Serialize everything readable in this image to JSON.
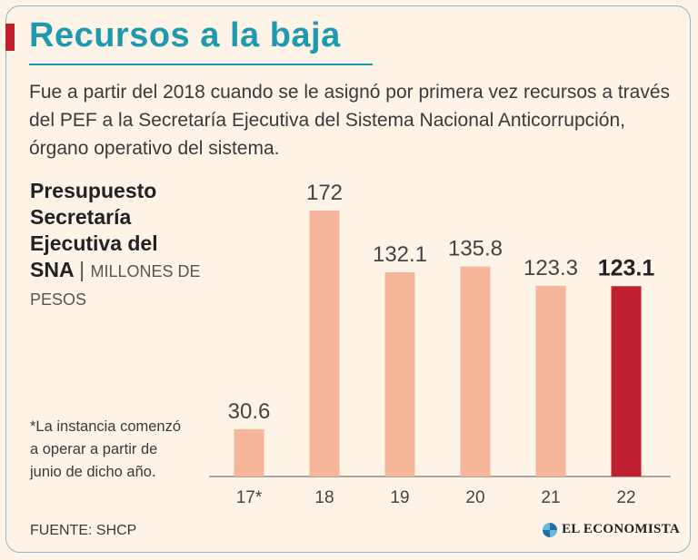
{
  "title": "Recursos a la baja",
  "intro": "Fue a partir del 2018 cuando se le asignó por primera vez recursos a través del PEF a la Secretaría Ejecutiva del Sistema Nacional Anticorrupción, órgano operativo del sistema.",
  "chart_heading": {
    "title": "Presupuesto Secretaría Ejecutiva del SNA",
    "separator": "|",
    "unit": "MILLONES DE PESOS"
  },
  "footnote": "*La instancia comenzó a operar a partir de junio de dicho año.",
  "source": "FUENTE: SHCP",
  "logo_text": "EL ECONOMISTA",
  "colors": {
    "accent": "#c0202c",
    "title": "#1d9ab0",
    "bar": "#f6b69a",
    "bar_highlight": "#bf1f2e"
  },
  "chart_data": {
    "type": "bar",
    "title": "Presupuesto Secretaría Ejecutiva del SNA",
    "ylabel": "MILLONES DE PESOS",
    "xlabel": "",
    "categories": [
      "17*",
      "18",
      "19",
      "20",
      "21",
      "22"
    ],
    "values": [
      30.6,
      172,
      132.1,
      135.8,
      123.3,
      123.1
    ],
    "labels": [
      "30.6",
      "172",
      "132.1",
      "135.8",
      "123.3",
      "123.1"
    ],
    "highlight_index": 5,
    "ylim": [
      0,
      172
    ],
    "grid": false
  }
}
